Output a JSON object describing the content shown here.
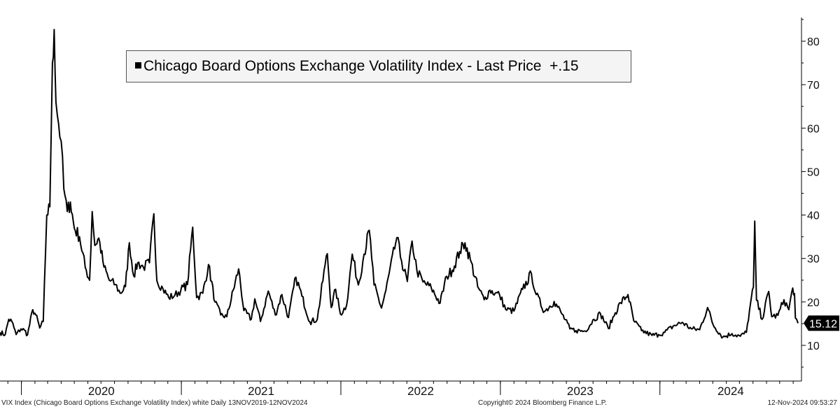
{
  "legend": {
    "marker": "black-square",
    "text": "Chicago Board Options Exchange Volatility Index - Last Price",
    "change": "+.15"
  },
  "footer": {
    "left": "VIX Index (Chicago Board Options Exchange Volatility Index) white  Daily 13NOV2019-12NOV2024",
    "middle": "Copyright© 2024 Bloomberg Finance L.P.",
    "right": "12-Nov-2024 09:53:27"
  },
  "chart_data": {
    "type": "line",
    "xlabel": "",
    "ylabel": "",
    "ylim": [
      5,
      85
    ],
    "yticks": [
      10,
      20,
      30,
      40,
      50,
      60,
      70,
      80
    ],
    "xlim": [
      "2019-11-13",
      "2024-11-12"
    ],
    "year_labels": [
      "2020",
      "2021",
      "2022",
      "2023",
      "2024"
    ],
    "grid": false,
    "axis_position": "right",
    "line_color": "#000000",
    "last_value": "15.12",
    "series": [
      {
        "values": [
          [
            "2019-11-13",
            13.0
          ],
          [
            "2019-11-25",
            12.5
          ],
          [
            "2019-12-03",
            16.0
          ],
          [
            "2019-12-10",
            15.5
          ],
          [
            "2019-12-20",
            12.5
          ],
          [
            "2019-12-31",
            13.8
          ],
          [
            "2020-01-08",
            13.5
          ],
          [
            "2020-01-15",
            12.4
          ],
          [
            "2020-01-27",
            18.2
          ],
          [
            "2020-02-03",
            17.0
          ],
          [
            "2020-02-12",
            14.0
          ],
          [
            "2020-02-20",
            15.5
          ],
          [
            "2020-02-28",
            40.0
          ],
          [
            "2020-03-06",
            41.9
          ],
          [
            "2020-03-12",
            75.0
          ],
          [
            "2020-03-16",
            82.7
          ],
          [
            "2020-03-20",
            66.0
          ],
          [
            "2020-03-26",
            61.0
          ],
          [
            "2020-04-01",
            57.0
          ],
          [
            "2020-04-07",
            46.0
          ],
          [
            "2020-04-15",
            40.8
          ],
          [
            "2020-04-22",
            43.0
          ],
          [
            "2020-05-01",
            37.0
          ],
          [
            "2020-05-13",
            35.0
          ],
          [
            "2020-05-26",
            28.0
          ],
          [
            "2020-06-05",
            25.0
          ],
          [
            "2020-06-11",
            40.8
          ],
          [
            "2020-06-17",
            33.0
          ],
          [
            "2020-06-26",
            34.7
          ],
          [
            "2020-07-08",
            28.0
          ],
          [
            "2020-07-20",
            25.0
          ],
          [
            "2020-08-03",
            24.0
          ],
          [
            "2020-08-14",
            22.0
          ],
          [
            "2020-08-26",
            23.5
          ],
          [
            "2020-09-04",
            33.6
          ],
          [
            "2020-09-14",
            26.0
          ],
          [
            "2020-09-23",
            29.0
          ],
          [
            "2020-10-06",
            28.0
          ],
          [
            "2020-10-20",
            29.0
          ],
          [
            "2020-10-30",
            40.3
          ],
          [
            "2020-11-06",
            24.9
          ],
          [
            "2020-11-20",
            23.0
          ],
          [
            "2020-12-03",
            21.0
          ],
          [
            "2020-12-17",
            21.5
          ],
          [
            "2020-12-31",
            22.8
          ],
          [
            "2021-01-15",
            24.0
          ],
          [
            "2021-01-27",
            37.2
          ],
          [
            "2021-02-05",
            21.0
          ],
          [
            "2021-02-19",
            22.0
          ],
          [
            "2021-03-04",
            28.6
          ],
          [
            "2021-03-19",
            20.0
          ],
          [
            "2021-04-01",
            17.0
          ],
          [
            "2021-04-15",
            16.6
          ],
          [
            "2021-05-12",
            27.6
          ],
          [
            "2021-05-24",
            18.0
          ],
          [
            "2021-06-10",
            16.0
          ],
          [
            "2021-06-18",
            20.7
          ],
          [
            "2021-07-01",
            15.5
          ],
          [
            "2021-07-19",
            22.5
          ],
          [
            "2021-08-04",
            17.0
          ],
          [
            "2021-08-19",
            21.7
          ],
          [
            "2021-09-03",
            16.4
          ],
          [
            "2021-09-20",
            25.7
          ],
          [
            "2021-10-04",
            21.3
          ],
          [
            "2021-10-22",
            15.4
          ],
          [
            "2021-11-08",
            16.0
          ],
          [
            "2021-11-26",
            28.6
          ],
          [
            "2021-12-01",
            31.1
          ],
          [
            "2021-12-10",
            18.7
          ],
          [
            "2021-12-20",
            22.9
          ],
          [
            "2021-12-31",
            17.2
          ],
          [
            "2022-01-14",
            19.2
          ],
          [
            "2022-01-27",
            31.0
          ],
          [
            "2022-02-10",
            23.9
          ],
          [
            "2022-02-23",
            31.0
          ],
          [
            "2022-03-07",
            36.5
          ],
          [
            "2022-03-18",
            23.9
          ],
          [
            "2022-04-04",
            18.6
          ],
          [
            "2022-04-14",
            22.7
          ],
          [
            "2022-05-09",
            34.8
          ],
          [
            "2022-05-20",
            29.4
          ],
          [
            "2022-06-02",
            24.7
          ],
          [
            "2022-06-13",
            34.0
          ],
          [
            "2022-06-24",
            27.2
          ],
          [
            "2022-07-08",
            24.6
          ],
          [
            "2022-07-27",
            23.2
          ],
          [
            "2022-08-16",
            19.7
          ],
          [
            "2022-08-31",
            25.9
          ],
          [
            "2022-09-13",
            27.3
          ],
          [
            "2022-09-30",
            31.6
          ],
          [
            "2022-10-12",
            33.6
          ],
          [
            "2022-10-24",
            29.8
          ],
          [
            "2022-11-10",
            23.5
          ],
          [
            "2022-11-25",
            20.5
          ],
          [
            "2022-12-08",
            22.7
          ],
          [
            "2022-12-20",
            22.0
          ],
          [
            "2022-12-30",
            21.7
          ],
          [
            "2023-01-13",
            18.3
          ],
          [
            "2023-02-01",
            17.9
          ],
          [
            "2023-02-21",
            22.9
          ],
          [
            "2023-03-13",
            26.5
          ],
          [
            "2023-03-24",
            21.7
          ],
          [
            "2023-04-12",
            17.8
          ],
          [
            "2023-05-04",
            20.1
          ],
          [
            "2023-05-22",
            17.2
          ],
          [
            "2023-06-09",
            13.8
          ],
          [
            "2023-06-23",
            13.4
          ],
          [
            "2023-07-14",
            13.3
          ],
          [
            "2023-08-03",
            16.0
          ],
          [
            "2023-08-18",
            17.3
          ],
          [
            "2023-09-05",
            13.9
          ],
          [
            "2023-09-21",
            17.5
          ],
          [
            "2023-10-03",
            19.8
          ],
          [
            "2023-10-20",
            21.7
          ],
          [
            "2023-11-02",
            15.7
          ],
          [
            "2023-11-20",
            13.4
          ],
          [
            "2023-12-14",
            12.3
          ],
          [
            "2023-12-29",
            12.5
          ],
          [
            "2024-01-12",
            13.0
          ],
          [
            "2024-01-31",
            14.4
          ],
          [
            "2024-02-21",
            15.3
          ],
          [
            "2024-03-13",
            13.8
          ],
          [
            "2024-04-01",
            13.6
          ],
          [
            "2024-04-19",
            18.7
          ],
          [
            "2024-05-02",
            14.7
          ],
          [
            "2024-05-24",
            11.9
          ],
          [
            "2024-06-14",
            12.7
          ],
          [
            "2024-07-03",
            12.1
          ],
          [
            "2024-07-17",
            13.0
          ],
          [
            "2024-07-24",
            18.0
          ],
          [
            "2024-08-02",
            23.4
          ],
          [
            "2024-08-05",
            38.6
          ],
          [
            "2024-08-09",
            20.4
          ],
          [
            "2024-08-22",
            16.0
          ],
          [
            "2024-09-06",
            22.4
          ],
          [
            "2024-09-13",
            16.6
          ],
          [
            "2024-09-27",
            16.9
          ],
          [
            "2024-10-11",
            20.5
          ],
          [
            "2024-10-22",
            18.2
          ],
          [
            "2024-10-31",
            23.2
          ],
          [
            "2024-11-04",
            21.9
          ],
          [
            "2024-11-06",
            16.3
          ],
          [
            "2024-11-12",
            15.1
          ]
        ]
      }
    ]
  }
}
